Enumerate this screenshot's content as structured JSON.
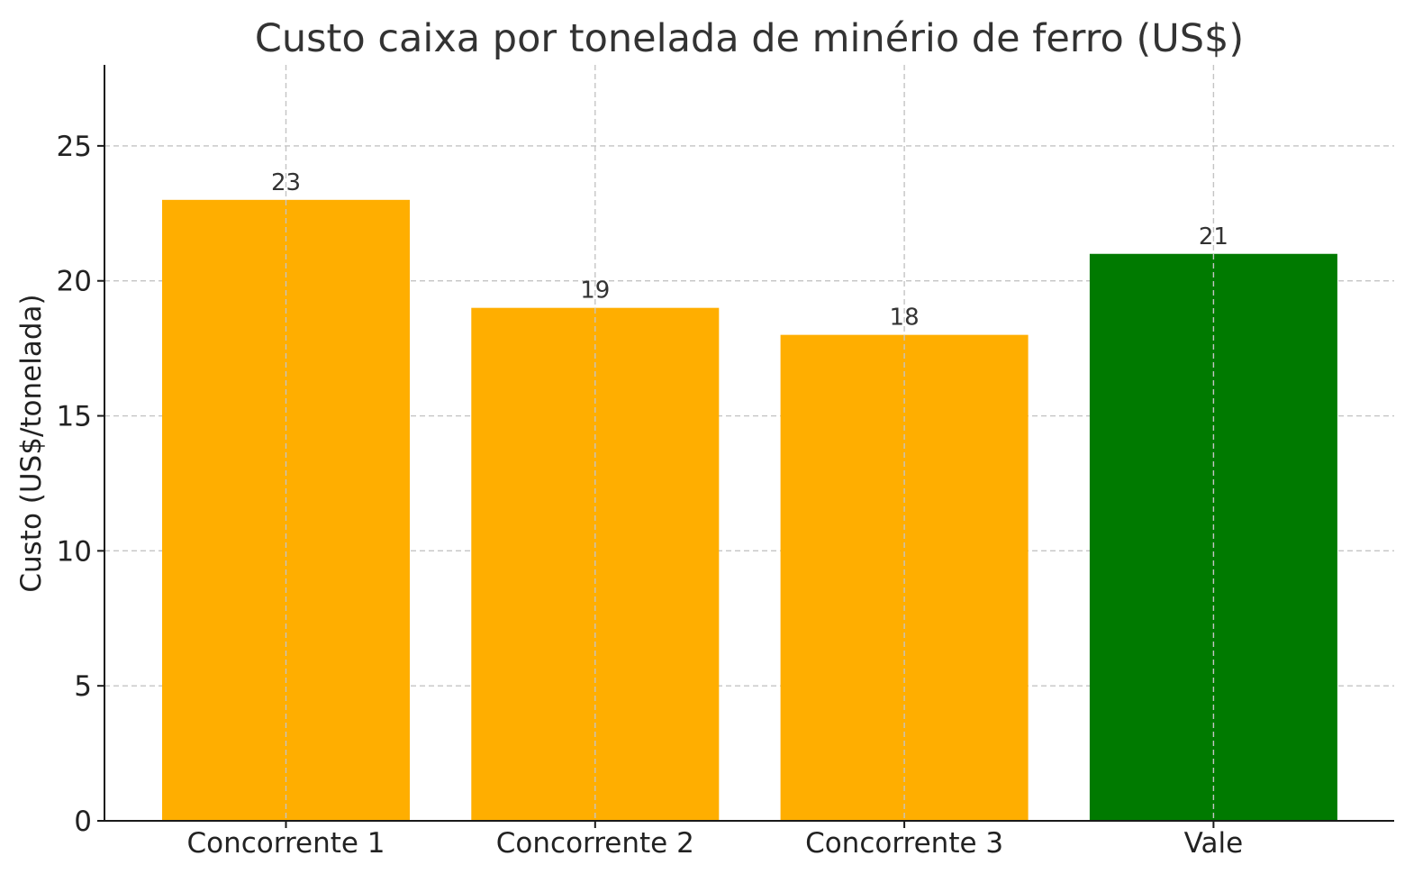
{
  "chart_data": {
    "type": "bar",
    "title": "Custo caixa por tonelada de minério de ferro (US$)",
    "xlabel": "",
    "ylabel": "Custo (US$/tonelada)",
    "categories": [
      "Concorrente 1",
      "Concorrente 2",
      "Concorrente 3",
      "Vale"
    ],
    "values": [
      23,
      19,
      18,
      21
    ],
    "data_labels": [
      "23",
      "19",
      "18",
      "21"
    ],
    "bar_colors": [
      "#FFAE00",
      "#FFAE00",
      "#FFAE00",
      "#007A00"
    ],
    "ylim": [
      0,
      28
    ],
    "yticks": [
      0,
      5,
      10,
      15,
      20,
      25
    ],
    "grid": true,
    "legend": "none"
  }
}
